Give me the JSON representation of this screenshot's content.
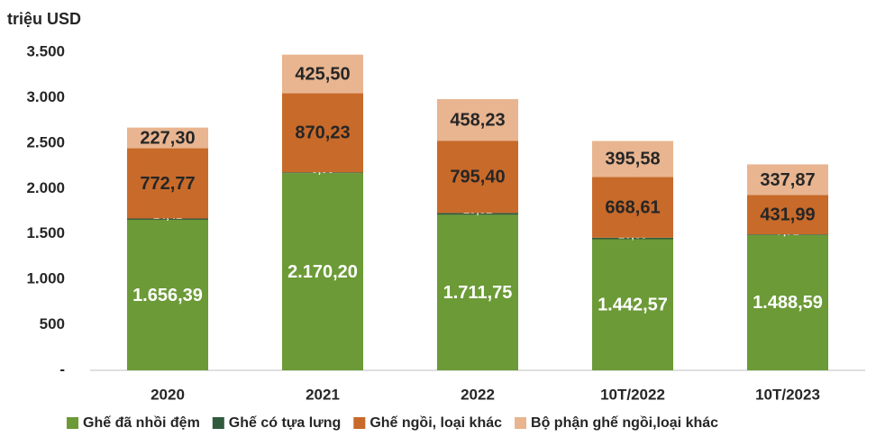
{
  "chart_data": {
    "type": "stacked_bar",
    "y_axis_label": "triệu USD",
    "categories": [
      "2020",
      "2021",
      "2022",
      "10T/2022",
      "10T/2023"
    ],
    "series": [
      {
        "name": "Ghế đã nhồi đệm",
        "color": "#6b9a36",
        "values": [
          1656.39,
          2170.2,
          1711.75,
          1442.57,
          1488.59
        ],
        "value_labels": [
          "1.656,39",
          "2.170,20",
          "1.711,75",
          "1.442,57",
          "1.488,59"
        ]
      },
      {
        "name": "Ghế có tựa lưng",
        "color": "#2f5a3c",
        "values": [
          14.41,
          8.0,
          19.31,
          16.69,
          7.71
        ],
        "value_labels": [
          "14,41",
          "8,00",
          "19,31",
          "16,69",
          "7,71"
        ]
      },
      {
        "name": "Ghế ngồi, loại khác",
        "color": "#c86a2a",
        "values": [
          772.77,
          870.23,
          795.4,
          668.61,
          431.99
        ],
        "value_labels": [
          "772,77",
          "870,23",
          "795,40",
          "668,61",
          "431,99"
        ]
      },
      {
        "name": "Bộ phận ghế ngồi,loại khác",
        "color": "#e8b590",
        "values": [
          227.3,
          425.5,
          458.23,
          395.58,
          337.87
        ],
        "value_labels": [
          "227,30",
          "425,50",
          "458,23",
          "395,58",
          "337,87"
        ]
      }
    ],
    "ylim": [
      0,
      3500
    ],
    "yticks": [
      {
        "value": 0,
        "label": "-"
      },
      500,
      {
        "value": 1000,
        "label": "1.000"
      },
      {
        "value": 1500,
        "label": "1.500"
      },
      {
        "value": 2000,
        "label": "2.000"
      },
      {
        "value": 2500,
        "label": "2.500"
      },
      {
        "value": 3000,
        "label": "3.000"
      },
      {
        "value": 3500,
        "label": "3.500"
      }
    ],
    "grid": false,
    "legend": "bottom"
  }
}
